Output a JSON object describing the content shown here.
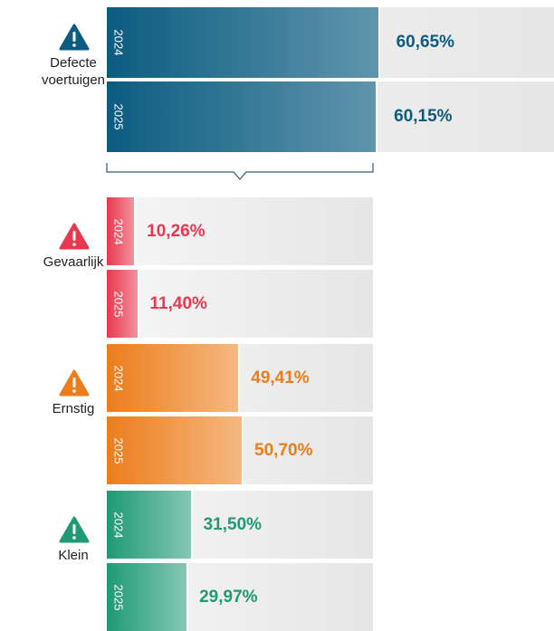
{
  "chart_data": [
    {
      "type": "bar",
      "orientation": "horizontal",
      "categories": [
        "Defecte voertuigen"
      ],
      "colors": [
        "#0b5c80"
      ],
      "series": [
        {
          "name": "2024",
          "values": [
            60.65
          ],
          "value_labels": [
            "60,65%"
          ]
        },
        {
          "name": "2025",
          "values": [
            60.15
          ],
          "value_labels": [
            "60,15%"
          ]
        }
      ],
      "xlim": [
        0,
        100
      ]
    },
    {
      "type": "bar",
      "orientation": "horizontal",
      "categories": [
        "Gevaarlijk",
        "Ernstig",
        "Klein"
      ],
      "colors": [
        "#e8384f",
        "#ec7d1c",
        "#1f9a74"
      ],
      "series": [
        {
          "name": "2024",
          "values": [
            10.26,
            49.41,
            31.5
          ],
          "value_labels": [
            "10,26%",
            "49,41%",
            "31,50%"
          ]
        },
        {
          "name": "2025",
          "values": [
            11.4,
            50.7,
            29.97
          ],
          "value_labels": [
            "11,40%",
            "50,70%",
            "29,97%"
          ]
        }
      ],
      "xlim": [
        0,
        100
      ]
    }
  ]
}
